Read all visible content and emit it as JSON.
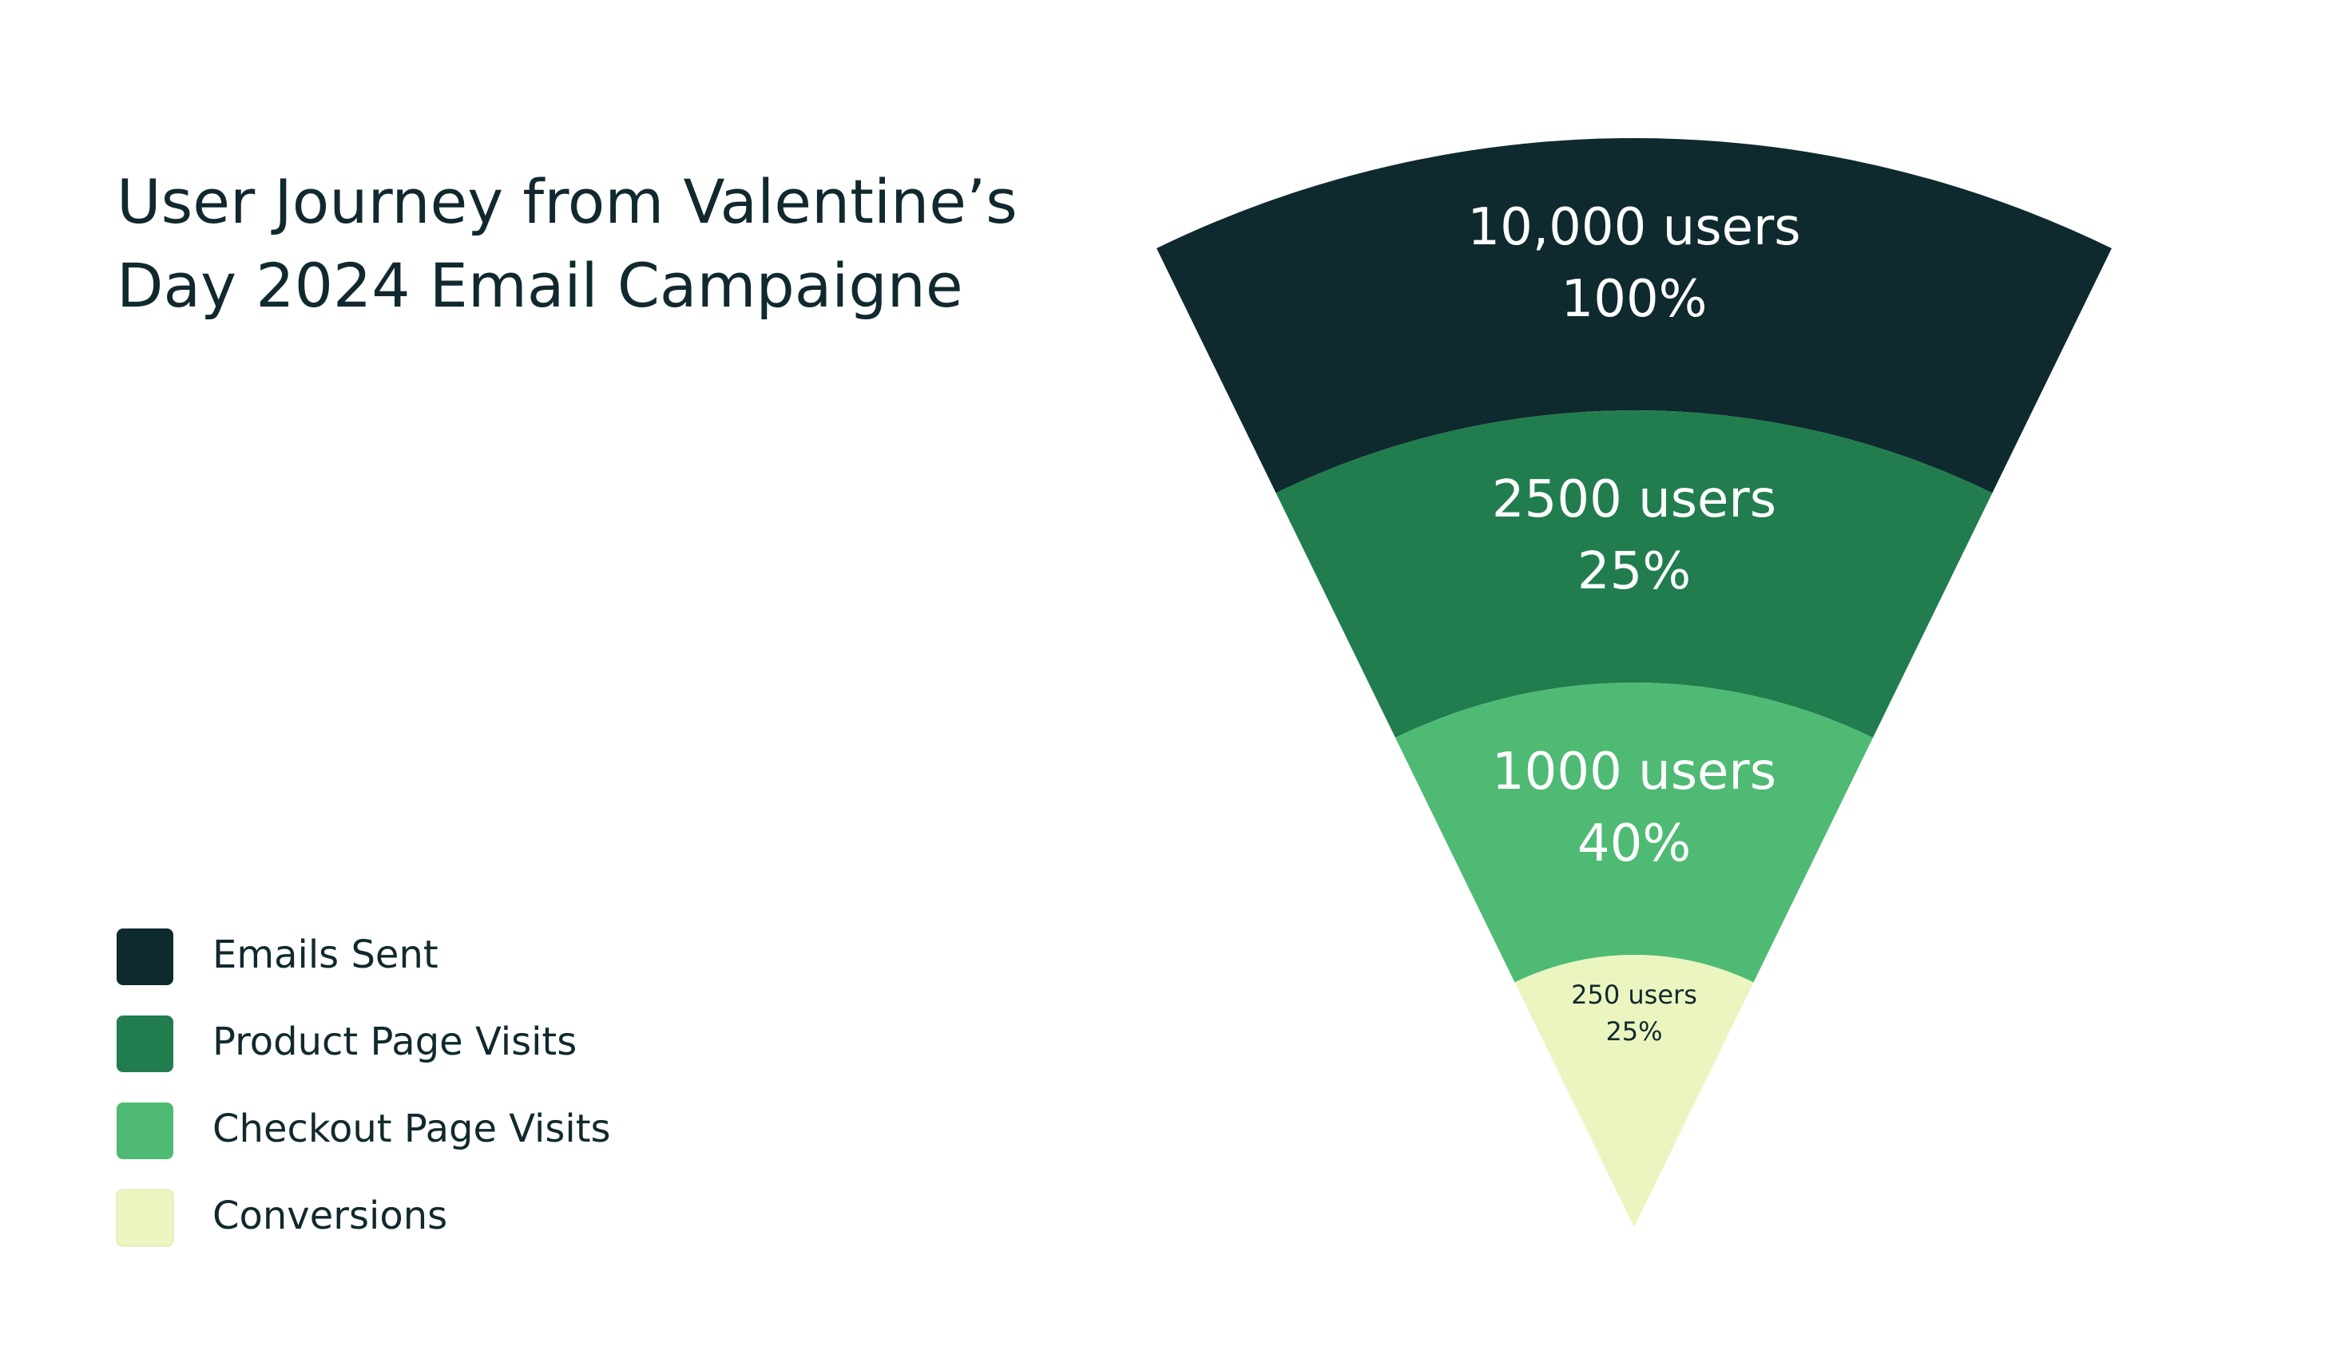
{
  "chart_data": {
    "type": "funnel",
    "title": "User Journey from Valentine’s Day 2024 Email Campaigne",
    "categories": [
      "Emails Sent",
      "Product Page Visits",
      "Checkout Page Visits",
      "Conversions"
    ],
    "values": [
      10000,
      2500,
      1000,
      250
    ],
    "value_labels": [
      "10,000 users",
      "2500 users",
      "1000 users",
      "250 users"
    ],
    "rates": [
      100,
      25,
      40,
      25
    ],
    "rate_labels": [
      "100%",
      "25%",
      "40%",
      "25%"
    ],
    "colors": [
      "#0f2a2f",
      "#217d4e",
      "#4fba74",
      "#ebf5c0"
    ]
  }
}
